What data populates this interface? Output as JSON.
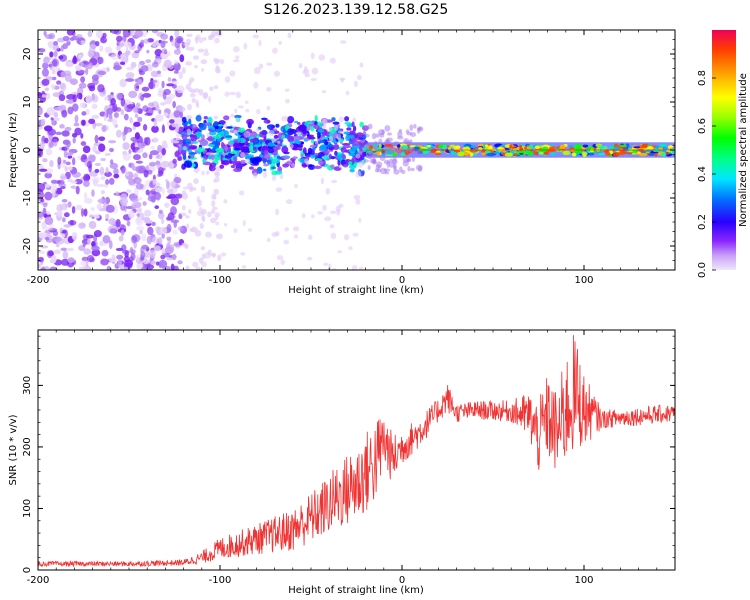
{
  "title": "S126.2023.139.12.58.G25",
  "chart_data": [
    {
      "type": "heatmap",
      "title": "S126.2023.139.12.58.G25",
      "xlabel": "Height of straight line (km)",
      "ylabel": "Frequency (Hz)",
      "xlim": [
        -200,
        150
      ],
      "ylim": [
        -25,
        25
      ],
      "xticks": [
        -200,
        -100,
        0,
        100
      ],
      "xtick_labels": [
        "-200",
        "-100",
        "0",
        "100"
      ],
      "yticks": [
        -20,
        -10,
        0,
        10,
        20
      ],
      "ytick_labels": [
        "-20",
        "-10",
        "0",
        "10",
        "20"
      ],
      "colorbar": {
        "label": "Normalized spectral amplitude",
        "range": [
          0.0,
          1.0
        ],
        "ticks": [
          0.0,
          0.2,
          0.4,
          0.6,
          0.8
        ],
        "tick_labels": [
          "0.0",
          "0.2",
          "0.4",
          "0.6",
          "0.8"
        ],
        "colors": [
          "#e6d5f7",
          "#9b59f5",
          "#6400ff",
          "#0000ff",
          "#00b4ff",
          "#00ffb4",
          "#00ff00",
          "#b4ff00",
          "#ffff00",
          "#ffb400",
          "#ff5000",
          "#ff0064"
        ]
      },
      "regions": [
        {
          "name": "diffuse noise",
          "x_range": [
            -200,
            -120
          ],
          "freq_range": [
            -25,
            25
          ],
          "amplitude": 0.15
        },
        {
          "name": "onset band",
          "x_range": [
            -120,
            -20
          ],
          "freq_center": 1,
          "freq_halfwidth": 4,
          "amplitude": 0.3
        },
        {
          "name": "carrier line",
          "x_range": [
            -20,
            150
          ],
          "freq_center": 0,
          "freq_halfwidth": 1,
          "amplitude": 0.9
        }
      ]
    },
    {
      "type": "line",
      "title": "",
      "xlabel": "Height of straight line (km)",
      "ylabel": "SNR (10 * v/v)",
      "xlim": [
        -200,
        150
      ],
      "ylim": [
        0,
        390
      ],
      "xticks": [
        -200,
        -100,
        0,
        100
      ],
      "xtick_labels": [
        "-200",
        "-100",
        "0",
        "100"
      ],
      "yticks": [
        0,
        100,
        200,
        300
      ],
      "ytick_labels": [
        "0",
        "100",
        "200",
        "300"
      ],
      "series": [
        {
          "name": "SNR",
          "color": "#f03232",
          "x": [
            -200,
            -150,
            -120,
            -110,
            -100,
            -80,
            -60,
            -45,
            -35,
            -25,
            -15,
            -10,
            -5,
            0,
            10,
            20,
            25,
            30,
            40,
            60,
            70,
            75,
            80,
            85,
            90,
            95,
            100,
            110,
            130,
            150
          ],
          "y": [
            10,
            10,
            12,
            20,
            35,
            50,
            65,
            95,
            120,
            140,
            175,
            210,
            180,
            200,
            225,
            260,
            280,
            255,
            260,
            258,
            250,
            215,
            250,
            220,
            260,
            290,
            260,
            245,
            250,
            255
          ],
          "noise_amplitude": [
            4,
            4,
            5,
            10,
            18,
            25,
            35,
            45,
            55,
            65,
            70,
            50,
            40,
            30,
            25,
            20,
            25,
            15,
            15,
            18,
            40,
            60,
            70,
            70,
            90,
            100,
            60,
            15,
            15,
            15
          ]
        }
      ]
    }
  ]
}
